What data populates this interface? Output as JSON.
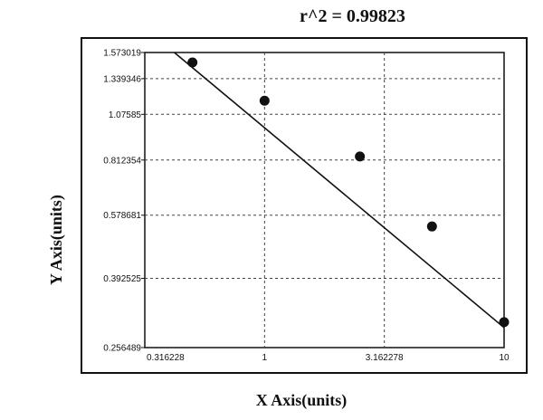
{
  "chart_data": {
    "type": "scatter",
    "annotation": "r^2  =  0.99823",
    "xlabel": "X Axis(units)",
    "ylabel": "Y Axis(units)",
    "x_scale": "log",
    "y_scale": "log",
    "xlim": [
      0.316228,
      10
    ],
    "ylim": [
      0.256489,
      1.573019
    ],
    "x_ticks": [
      "0.316228",
      "1",
      "3.162278",
      "10"
    ],
    "y_ticks": [
      "1.573019",
      "1.339346",
      "1.07585",
      "0.812354",
      "0.578681",
      "0.392525",
      "0.256489"
    ],
    "grid": true,
    "legend": "none",
    "series": [
      {
        "points": [
          {
            "x": 0.5,
            "y": 1.48
          },
          {
            "x": 1.0,
            "y": 1.17
          },
          {
            "x": 2.5,
            "y": 0.83
          },
          {
            "x": 5.0,
            "y": 0.54
          },
          {
            "x": 10.0,
            "y": 0.3
          }
        ]
      }
    ],
    "fit_line": [
      {
        "x": 0.42,
        "y": 1.573019
      },
      {
        "x": 10.0,
        "y": 0.29
      }
    ],
    "colors": {
      "marker": "#111111",
      "line": "#111111",
      "grid": "#444444",
      "plot_border": "#111111"
    }
  }
}
